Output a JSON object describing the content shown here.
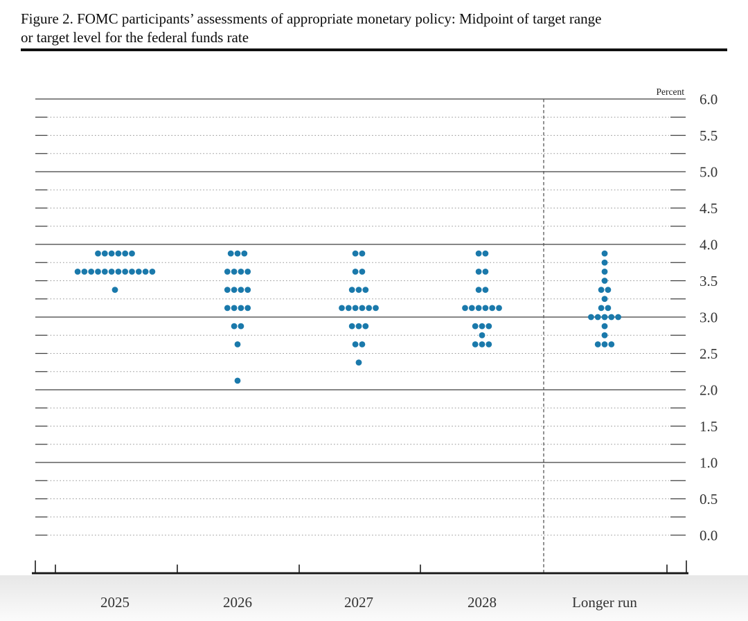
{
  "title": {
    "line1": "Figure 2. FOMC participants’ assessments of appropriate monetary policy: Midpoint of target range",
    "line2": "or target level for the federal funds rate"
  },
  "chart_data": {
    "type": "scatter",
    "subtype": "fomc-dot-plot",
    "title": "Figure 2. FOMC participants’ assessments of appropriate monetary policy: Midpoint of target range or target level for the federal funds rate",
    "unit_label": "Percent",
    "categories": [
      "2025",
      "2026",
      "2027",
      "2028",
      "Longer run"
    ],
    "y_axis": {
      "min": 0.0,
      "max": 6.0,
      "label_step": 0.5,
      "minor_step": 0.25,
      "solid_line_values": [
        1.0,
        2.0,
        3.0,
        4.0,
        5.0,
        6.0
      ],
      "tick_labels": [
        "6.0",
        "5.5",
        "5.0",
        "4.5",
        "4.0",
        "3.5",
        "3.0",
        "2.5",
        "2.0",
        "1.5",
        "1.0",
        "0.5",
        "0.0"
      ]
    },
    "series": [
      {
        "category": "2025",
        "dots": [
          {
            "rate": 3.875,
            "count": 6
          },
          {
            "rate": 3.625,
            "count": 12
          },
          {
            "rate": 3.375,
            "count": 1
          }
        ]
      },
      {
        "category": "2026",
        "dots": [
          {
            "rate": 3.875,
            "count": 3
          },
          {
            "rate": 3.625,
            "count": 4
          },
          {
            "rate": 3.375,
            "count": 4
          },
          {
            "rate": 3.125,
            "count": 4
          },
          {
            "rate": 2.875,
            "count": 2
          },
          {
            "rate": 2.625,
            "count": 1
          },
          {
            "rate": 2.125,
            "count": 1
          }
        ]
      },
      {
        "category": "2027",
        "dots": [
          {
            "rate": 3.875,
            "count": 2
          },
          {
            "rate": 3.625,
            "count": 2
          },
          {
            "rate": 3.375,
            "count": 3
          },
          {
            "rate": 3.125,
            "count": 6
          },
          {
            "rate": 2.875,
            "count": 3
          },
          {
            "rate": 2.625,
            "count": 2
          },
          {
            "rate": 2.375,
            "count": 1
          }
        ]
      },
      {
        "category": "2028",
        "dots": [
          {
            "rate": 3.875,
            "count": 2
          },
          {
            "rate": 3.625,
            "count": 2
          },
          {
            "rate": 3.375,
            "count": 2
          },
          {
            "rate": 3.125,
            "count": 6
          },
          {
            "rate": 2.875,
            "count": 3
          },
          {
            "rate": 2.75,
            "count": 1
          },
          {
            "rate": 2.625,
            "count": 3
          }
        ]
      },
      {
        "category": "Longer run",
        "dots": [
          {
            "rate": 3.875,
            "count": 1
          },
          {
            "rate": 3.75,
            "count": 1
          },
          {
            "rate": 3.625,
            "count": 1
          },
          {
            "rate": 3.5,
            "count": 1
          },
          {
            "rate": 3.375,
            "count": 2
          },
          {
            "rate": 3.25,
            "count": 1
          },
          {
            "rate": 3.125,
            "count": 2
          },
          {
            "rate": 3.0,
            "count": 5
          },
          {
            "rate": 2.875,
            "count": 1
          },
          {
            "rate": 2.75,
            "count": 1
          },
          {
            "rate": 2.625,
            "count": 3
          }
        ]
      }
    ],
    "separator": {
      "dashed_line_before_category": "Longer run"
    },
    "colors": {
      "dot": "#1a79ab",
      "solid_grid": "#3d3d3d",
      "dotted_grid": "#969696",
      "axis": "#1a1a1a",
      "label": "#333333",
      "separator": "#555555"
    },
    "layout_hints": {
      "grid": "on",
      "legend": "none",
      "y_labels_side": "right"
    }
  }
}
